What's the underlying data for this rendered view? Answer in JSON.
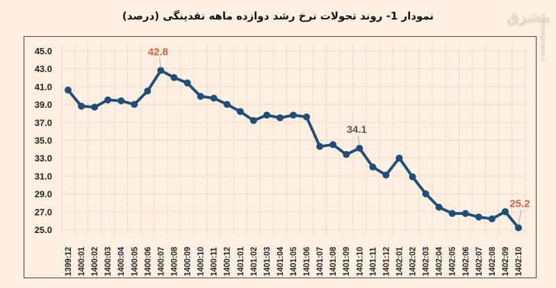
{
  "header": {
    "title": "نمودار 1- روند تحولات نرخ رشد دوازده ماهه نقدینگی (درصد)",
    "logo": "مشرق",
    "watermark": "mashreghnews.ir"
  },
  "colors": {
    "background": "#fdf0e3",
    "line": "#1f4e79",
    "highlight_label": "#d9603b",
    "annotation_label": "#5a5a5a",
    "grid": "#f0d9c4"
  },
  "chart_data": {
    "type": "line",
    "title": "نمودار 1- روند تحولات نرخ رشد دوازده ماهه نقدینگی (درصد)",
    "xlabel": "",
    "ylabel": "",
    "ylim": [
      25.0,
      45.0
    ],
    "yticks": [
      "45.0",
      "43.0",
      "41.0",
      "39.0",
      "37.0",
      "35.0",
      "33.0",
      "31.0",
      "29.0",
      "27.0",
      "25.0"
    ],
    "grid": true,
    "legend": null,
    "categories": [
      "1399:12",
      "1400:01",
      "1400:02",
      "1400:03",
      "1400:04",
      "1400:05",
      "1400:06",
      "1400:07",
      "1400:08",
      "1400:09",
      "1400:10",
      "1400:11",
      "1400:12",
      "1401:01",
      "1401:02",
      "1401:03",
      "1401:04",
      "1401:05",
      "1401:06",
      "1401:07",
      "1401:08",
      "1401:09",
      "1401:10",
      "1401:11",
      "1401:12",
      "1402:01",
      "1402:02",
      "1402:03",
      "1402:04",
      "1402:05",
      "1402:06",
      "1402:07",
      "1402:08",
      "1402:09",
      "1402:10"
    ],
    "series": [
      {
        "name": "نرخ رشد دوازده ماهه نقدینگی",
        "values": [
          40.6,
          38.8,
          38.7,
          39.5,
          39.4,
          39.0,
          40.5,
          42.8,
          42.0,
          41.4,
          39.9,
          39.7,
          39.0,
          38.2,
          37.2,
          37.8,
          37.5,
          37.8,
          37.6,
          34.3,
          34.5,
          33.4,
          34.1,
          32.0,
          31.1,
          33.0,
          30.9,
          29.0,
          27.5,
          26.8,
          26.8,
          26.4,
          26.2,
          27.0,
          25.2
        ]
      }
    ],
    "annotations": [
      {
        "category": "1400:07",
        "text": "42.8",
        "color": "#d9603b"
      },
      {
        "category": "1401:10",
        "text": "34.1",
        "color": "#5a5a5a"
      },
      {
        "category": "1402:10",
        "text": "25.2",
        "color": "#d9603b"
      }
    ]
  }
}
